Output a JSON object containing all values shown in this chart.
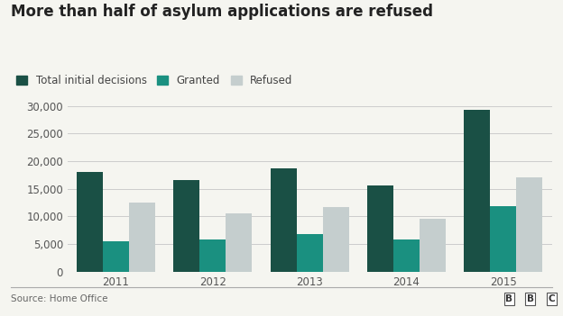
{
  "title": "More than half of asylum applications are refused",
  "years": [
    2011,
    2012,
    2013,
    2014,
    2015
  ],
  "total_decisions": [
    18100,
    16600,
    18700,
    15600,
    29200
  ],
  "granted": [
    5500,
    5900,
    6800,
    5900,
    11900
  ],
  "refused": [
    12500,
    10600,
    11700,
    9600,
    17000
  ],
  "color_total": "#1a5045",
  "color_granted": "#1a9080",
  "color_refused": "#c5cece",
  "ylim": [
    0,
    32000
  ],
  "yticks": [
    0,
    5000,
    10000,
    15000,
    20000,
    25000,
    30000
  ],
  "legend_labels": [
    "Total initial decisions",
    "Granted",
    "Refused"
  ],
  "source_text": "Source: Home Office",
  "bg_color": "#f5f5f0",
  "bar_width": 0.27,
  "title_fontsize": 12,
  "legend_fontsize": 8.5,
  "tick_fontsize": 8.5,
  "source_fontsize": 7.5
}
